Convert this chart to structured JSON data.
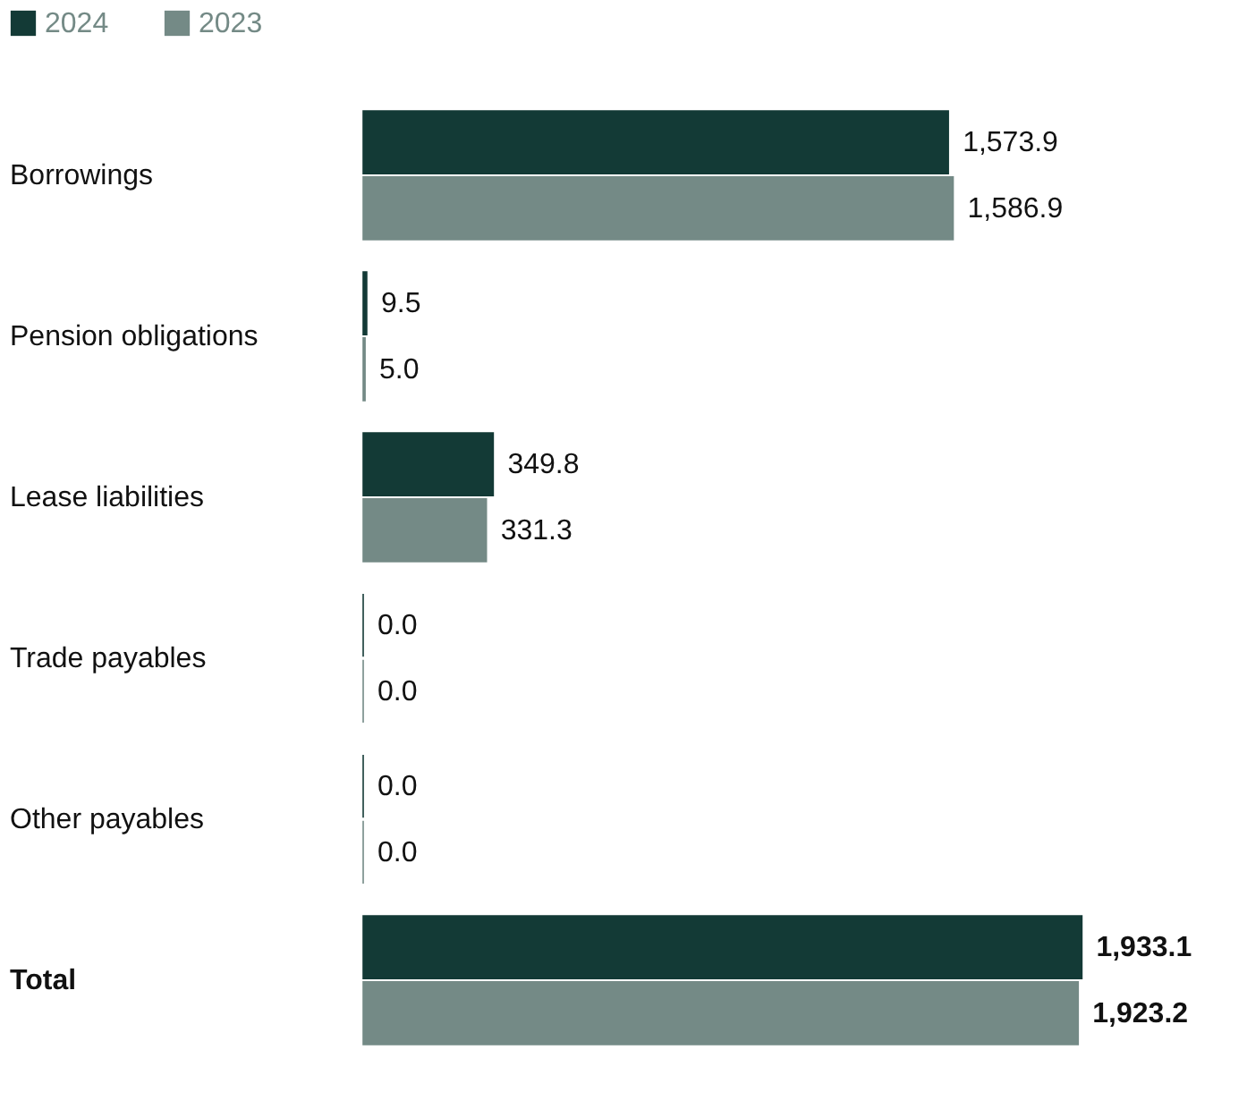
{
  "chart_data": {
    "type": "bar",
    "orientation": "horizontal",
    "categories": [
      "Borrowings",
      "Pension obligations",
      "Lease liabilities",
      "Trade payables",
      "Other payables",
      "Total"
    ],
    "series": [
      {
        "name": "2024",
        "color": "#133a36",
        "values": [
          1573.9,
          9.5,
          349.8,
          0.0,
          0.0,
          1933.1
        ],
        "value_labels": [
          "1,573.9",
          "9.5",
          "349.8",
          "0.0",
          "0.0",
          "1,933.1"
        ]
      },
      {
        "name": "2023",
        "color": "#748a86",
        "values": [
          1586.9,
          5.0,
          331.3,
          0.0,
          0.0,
          1923.2
        ],
        "value_labels": [
          "1,586.9",
          "5.0",
          "331.3",
          "0.0",
          "0.0",
          "1,923.2"
        ]
      }
    ],
    "legend": "top left",
    "grid": false,
    "tick_labels": "y"
  }
}
